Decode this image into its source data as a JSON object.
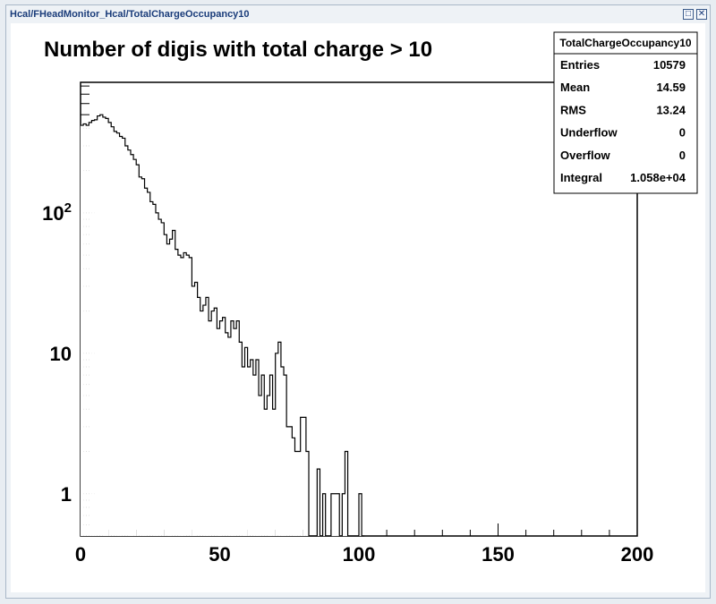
{
  "window": {
    "title": "Hcal/FHeadMonitor_Hcal/TotalChargeOccupancy10",
    "maximize_icon": "maximize-icon",
    "close_icon": "close-icon"
  },
  "stats": {
    "name": "TotalChargeOccupancy10",
    "rows": [
      {
        "label": "Entries",
        "value": "10579"
      },
      {
        "label": "Mean",
        "value": "14.59"
      },
      {
        "label": "RMS",
        "value": "13.24"
      },
      {
        "label": "Underflow",
        "value": "0"
      },
      {
        "label": "Overflow",
        "value": "0"
      },
      {
        "label": "Integral",
        "value": "1.058e+04"
      }
    ]
  },
  "chart_data": {
    "type": "histogram",
    "title": "Number of digis with total charge > 10",
    "xlabel": "",
    "ylabel": "",
    "xlim": [
      0,
      200
    ],
    "ylim": [
      0.5,
      850
    ],
    "yscale": "log",
    "grid": false,
    "bin_width": 1,
    "x_start": 0,
    "x_ticks": [
      "0",
      "50",
      "100",
      "150",
      "200"
    ],
    "y_ticks": [
      {
        "value": 1,
        "base": "1",
        "exp": ""
      },
      {
        "value": 10,
        "base": "10",
        "exp": ""
      },
      {
        "value": 100,
        "base": "10",
        "exp": "2"
      }
    ],
    "values": [
      420,
      430,
      420,
      440,
      455,
      460,
      490,
      500,
      480,
      470,
      440,
      410,
      380,
      370,
      350,
      340,
      300,
      280,
      260,
      240,
      220,
      180,
      175,
      150,
      140,
      120,
      115,
      100,
      90,
      85,
      70,
      60,
      65,
      75,
      55,
      50,
      48,
      52,
      50,
      48,
      30,
      32,
      25,
      20,
      22,
      25,
      17,
      20,
      21,
      15,
      17,
      18,
      14,
      13,
      17,
      15,
      17,
      12,
      8,
      11,
      8,
      9,
      7,
      9,
      5,
      7,
      4,
      5,
      7,
      4,
      10,
      12,
      8,
      7,
      3,
      3,
      2.5,
      2,
      2,
      3.5,
      3.5,
      2,
      0,
      0,
      0,
      1.5,
      0,
      1,
      0,
      0,
      1,
      1,
      1,
      0,
      1,
      2,
      0,
      0,
      0,
      0,
      1,
      0
    ]
  }
}
